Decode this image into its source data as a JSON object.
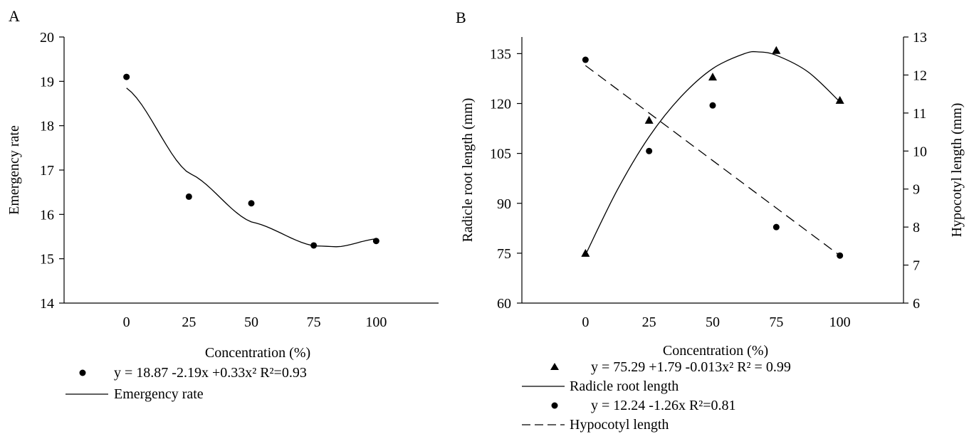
{
  "chart_data": [
    {
      "panel": "A",
      "type": "scatter",
      "xlabel": "Concentration (%)",
      "ylabel": "Emergency rate",
      "xlim": [
        -25,
        125
      ],
      "ylim": [
        14,
        20
      ],
      "x_ticks": [
        "0",
        "25",
        "50",
        "75",
        "100"
      ],
      "y_ticks": [
        "14",
        "15",
        "16",
        "17",
        "18",
        "19",
        "20"
      ],
      "grid": false,
      "series": [
        {
          "name": "Emergency rate",
          "points": [
            [
              0,
              19.1
            ],
            [
              25,
              16.4
            ],
            [
              50,
              16.25
            ],
            [
              75,
              15.3
            ],
            [
              100,
              15.4
            ]
          ],
          "marker": "circle",
          "fit": {
            "kind": "quadratic",
            "style": "solid",
            "range": [
              0,
              100
            ],
            "curve": [
              [
                0,
                18.85
              ],
              [
                25,
                16.93
              ],
              [
                50,
                15.83
              ],
              [
                75,
                15.29
              ],
              [
                85,
                15.27
              ],
              [
                100,
                15.45
              ]
            ]
          }
        }
      ],
      "legend": {
        "position": "bottom",
        "entries": [
          {
            "symbol": "circle",
            "text": "y = 18.87 -2.19x +0.33x²    R²=0.93"
          },
          {
            "symbol": "solid-line",
            "text": "Emergency rate"
          }
        ]
      }
    },
    {
      "panel": "B",
      "type": "scatter",
      "xlabel": "Concentration (%)",
      "ylabel": "Radicle root length (mm)",
      "y2label": "Hypocotyl length (mm)",
      "xlim": [
        -25,
        125
      ],
      "ylim": [
        60,
        140
      ],
      "y2lim": [
        6,
        13
      ],
      "x_ticks": [
        "0",
        "25",
        "50",
        "75",
        "100"
      ],
      "y_ticks": [
        "60",
        "75",
        "90",
        "105",
        "120",
        "135"
      ],
      "y2_ticks": [
        "6",
        "7",
        "8",
        "9",
        "10",
        "11",
        "12",
        "13"
      ],
      "grid": false,
      "series": [
        {
          "name": "Radicle root length",
          "axis": "left",
          "marker": "triangle",
          "points": [
            [
              0,
              75
            ],
            [
              25,
              115
            ],
            [
              50,
              128
            ],
            [
              75,
              136
            ],
            [
              100,
              121
            ]
          ],
          "fit": {
            "kind": "quadratic",
            "style": "solid",
            "range": [
              0,
              100
            ],
            "curve": [
              [
                0,
                74.5
              ],
              [
                12.5,
                94
              ],
              [
                25,
                110
              ],
              [
                37.5,
                122
              ],
              [
                50,
                130.5
              ],
              [
                62.5,
                135
              ],
              [
                68,
                135.5
              ],
              [
                75,
                134.5
              ],
              [
                87.5,
                129.5
              ],
              [
                100,
                120.5
              ]
            ]
          }
        },
        {
          "name": "Hypocotyl length",
          "axis": "right",
          "marker": "circle",
          "points": [
            [
              0,
              12.4
            ],
            [
              25,
              10.0
            ],
            [
              50,
              11.2
            ],
            [
              75,
              8.0
            ],
            [
              100,
              7.25
            ]
          ],
          "fit": {
            "kind": "linear",
            "style": "dashed",
            "range": [
              0,
              100
            ],
            "curve": [
              [
                0,
                12.25
              ],
              [
                100,
                7.25
              ]
            ]
          }
        }
      ],
      "legend": {
        "position": "bottom",
        "entries": [
          {
            "symbol": "triangle",
            "text": "y = 75.29 +1.79 -0.013x²   R² = 0.99"
          },
          {
            "symbol": "solid-line",
            "text": "Radicle root length"
          },
          {
            "symbol": "circle",
            "text": "y = 12.24 -1.26x   R²=0.81"
          },
          {
            "symbol": "dashed-line",
            "text": "Hypocotyl length"
          }
        ]
      }
    }
  ]
}
